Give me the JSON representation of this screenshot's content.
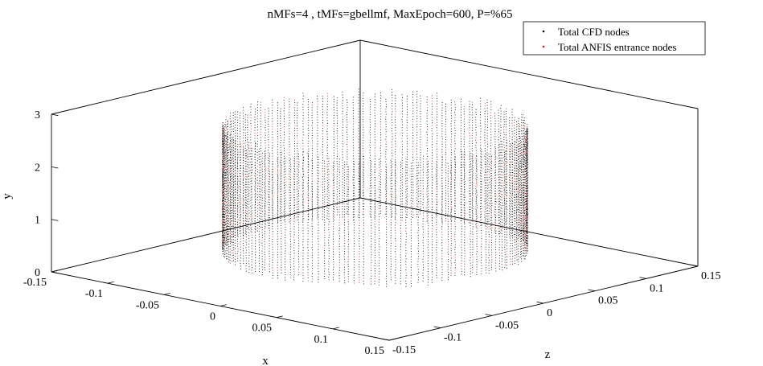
{
  "chart_data": {
    "type": "scatter",
    "projection": "3d",
    "title": "nMFs=4 , tMFs=gbellmf, MaxEpoch=600, P=%65",
    "xlabel": "x",
    "ylabel": "y",
    "zlabel": "z",
    "xlim": [
      -0.15,
      0.15
    ],
    "ylim": [
      0,
      3
    ],
    "zlim": [
      -0.15,
      0.15
    ],
    "xticks": [
      "-0.15",
      "-0.1",
      "-0.05",
      "0",
      "0.05",
      "0.1",
      "0.15"
    ],
    "yticks": [
      "0",
      "1",
      "2",
      "3"
    ],
    "zticks": [
      "-0.15",
      "-0.1",
      "-0.05",
      "0",
      "0.05",
      "0.1",
      "0.15"
    ],
    "grid": false,
    "box": true,
    "legend_position": "top-right",
    "geometry": {
      "shape": "cylinder",
      "radius": 0.1,
      "height_range": [
        0.3,
        2.8
      ],
      "num_columns": 180
    },
    "series": [
      {
        "name": "Total CFD nodes",
        "color": "#000000",
        "marker": "dot"
      },
      {
        "name": "Total ANFIS entrance nodes",
        "color": "#e41a1c",
        "marker": "dot"
      }
    ]
  }
}
